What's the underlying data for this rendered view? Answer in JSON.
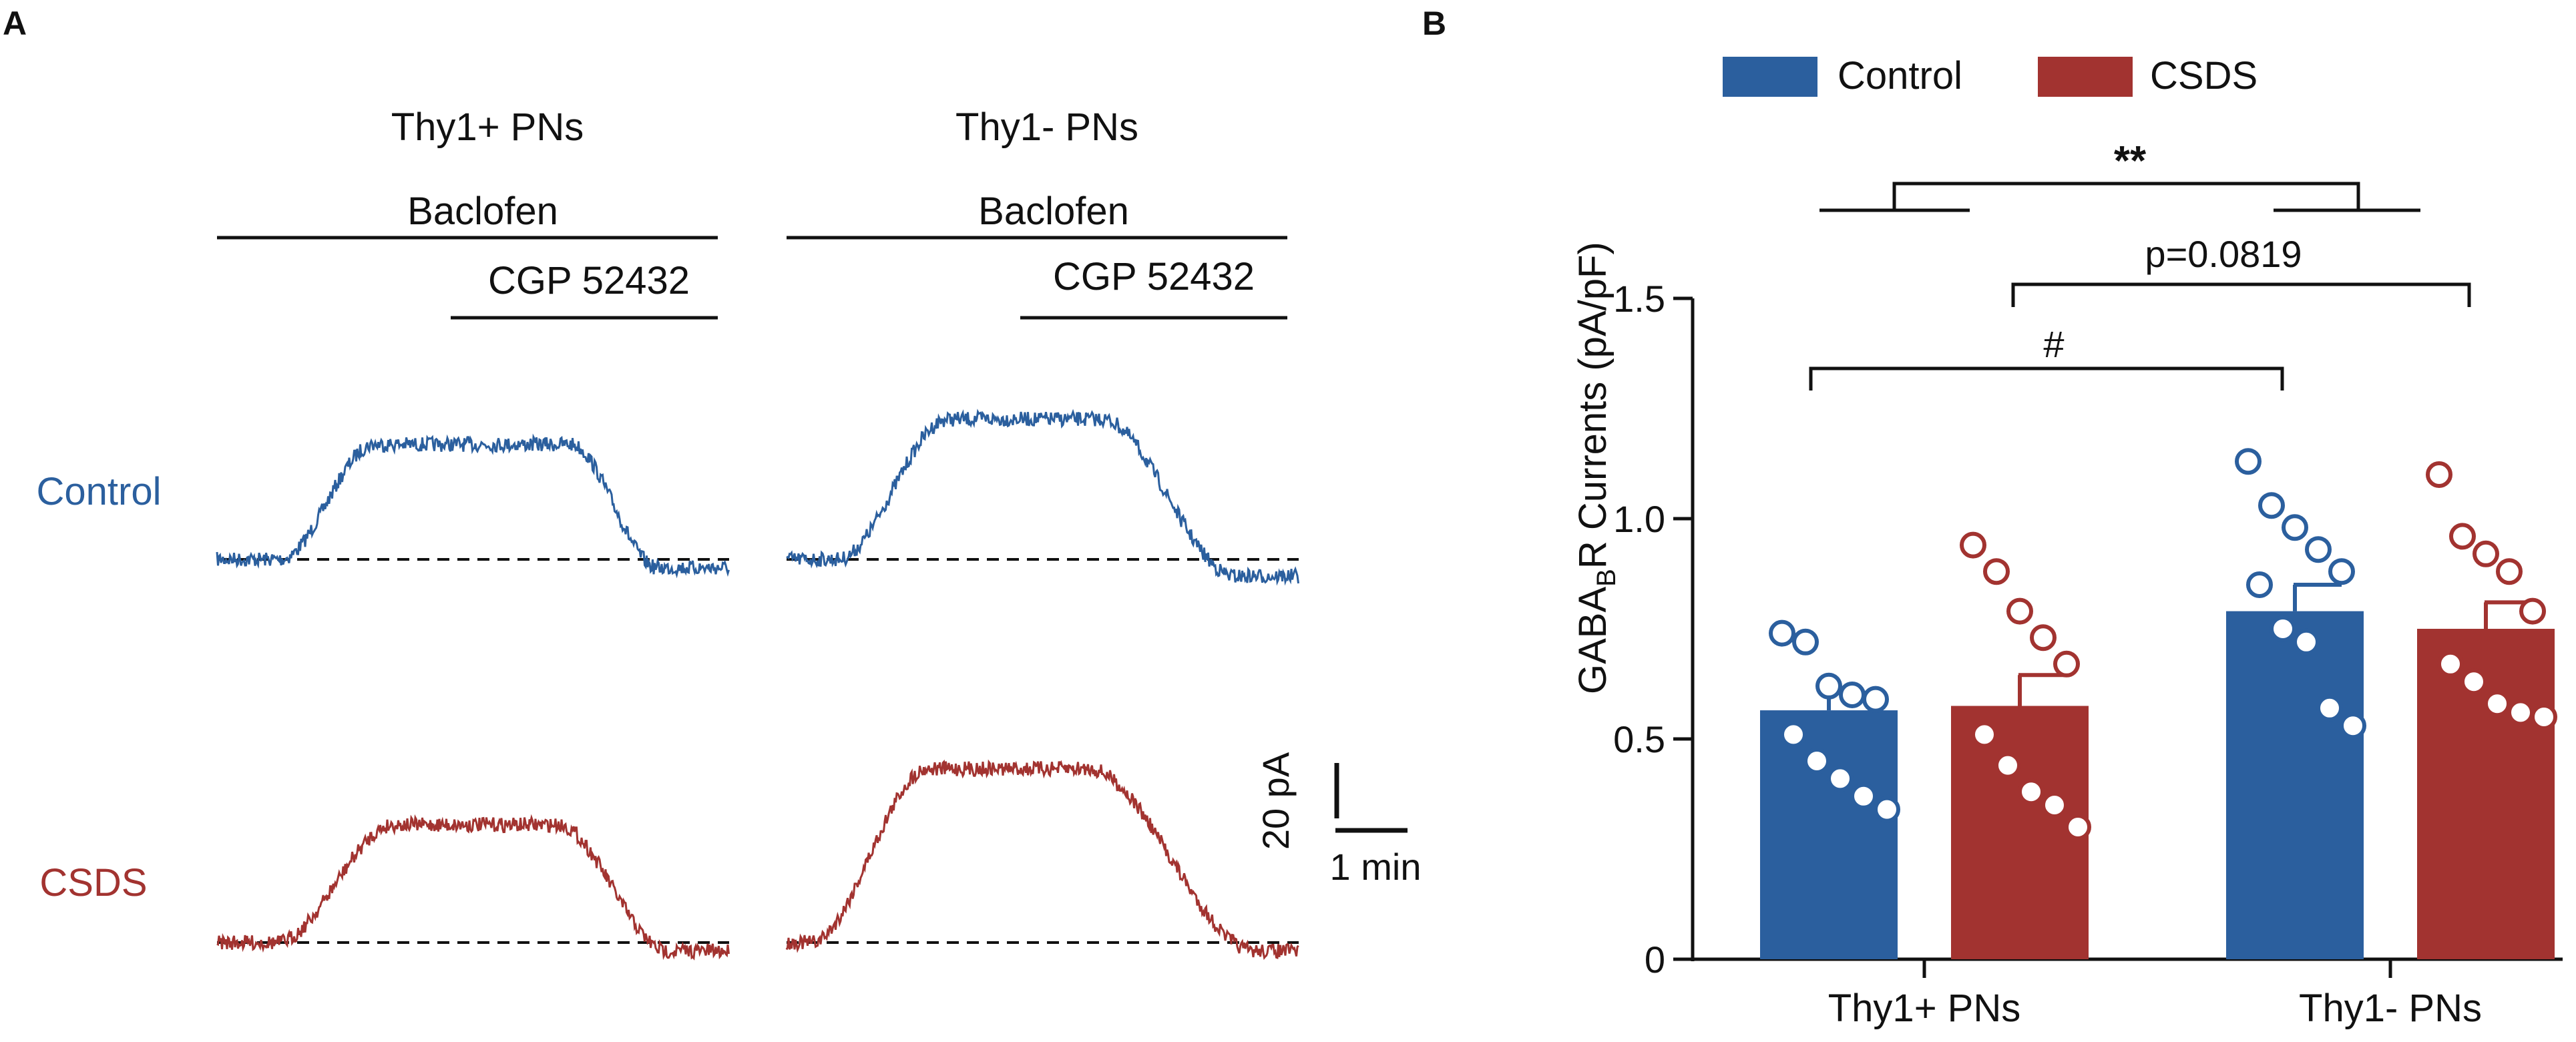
{
  "panels": {
    "a": {
      "label": "A"
    },
    "b": {
      "label": "B"
    }
  },
  "colors": {
    "control": "#2b5f9e",
    "csds": "#a23330",
    "ink": "#111111"
  },
  "panel_a": {
    "columns": [
      "Thy1+ PNs",
      "Thy1- PNs"
    ],
    "drug1": "Baclofen",
    "drug2": "CGP 52432",
    "rows": [
      "Control",
      "CSDS"
    ],
    "scale_y": "20 pA",
    "scale_x": "1 min",
    "traces": [
      {
        "group": "Control",
        "cell": "Thy1+ PNs",
        "peak_pA": 41,
        "final_pA": -3
      },
      {
        "group": "Control",
        "cell": "Thy1- PNs",
        "peak_pA": 50,
        "final_pA": -6
      },
      {
        "group": "CSDS",
        "cell": "Thy1+ PNs",
        "peak_pA": 42,
        "final_pA": -3
      },
      {
        "group": "CSDS",
        "cell": "Thy1- PNs",
        "peak_pA": 62,
        "final_pA": -3
      }
    ]
  },
  "chart_data": {
    "type": "bar",
    "title": "",
    "xlabel": "",
    "ylabel_main": "GABA",
    "ylabel_sub": "B",
    "ylabel_rest": "R Currents (pA/pF)",
    "ylim": [
      0,
      1.5
    ],
    "yticks": [
      "0",
      "0.5",
      "1.0",
      "1.5"
    ],
    "ytick_values": [
      0,
      0.5,
      1.0,
      1.5
    ],
    "categories": [
      "Thy1+ PNs",
      "Thy1- PNs"
    ],
    "legend": [
      "Control",
      "CSDS"
    ],
    "legend_position": "top",
    "series": [
      {
        "name": "Control",
        "values": [
          0.565,
          0.79
        ],
        "sem": [
          0.04,
          0.06
        ],
        "points": [
          [
            0.74,
            0.72,
            0.62,
            0.6,
            0.59,
            0.51,
            0.45,
            0.41,
            0.37,
            0.34
          ],
          [
            1.13,
            1.03,
            0.98,
            0.93,
            0.88,
            0.85,
            0.75,
            0.72,
            0.57,
            0.53
          ]
        ]
      },
      {
        "name": "CSDS",
        "values": [
          0.575,
          0.75
        ],
        "sem": [
          0.07,
          0.06
        ],
        "points": [
          [
            0.94,
            0.88,
            0.79,
            0.73,
            0.67,
            0.51,
            0.44,
            0.38,
            0.35,
            0.3
          ],
          [
            1.1,
            0.96,
            0.92,
            0.88,
            0.79,
            0.67,
            0.63,
            0.58,
            0.56,
            0.55
          ]
        ]
      }
    ],
    "annotations": {
      "main_effect": "**",
      "pvalue": "p=0.0819",
      "hash": "#"
    }
  }
}
